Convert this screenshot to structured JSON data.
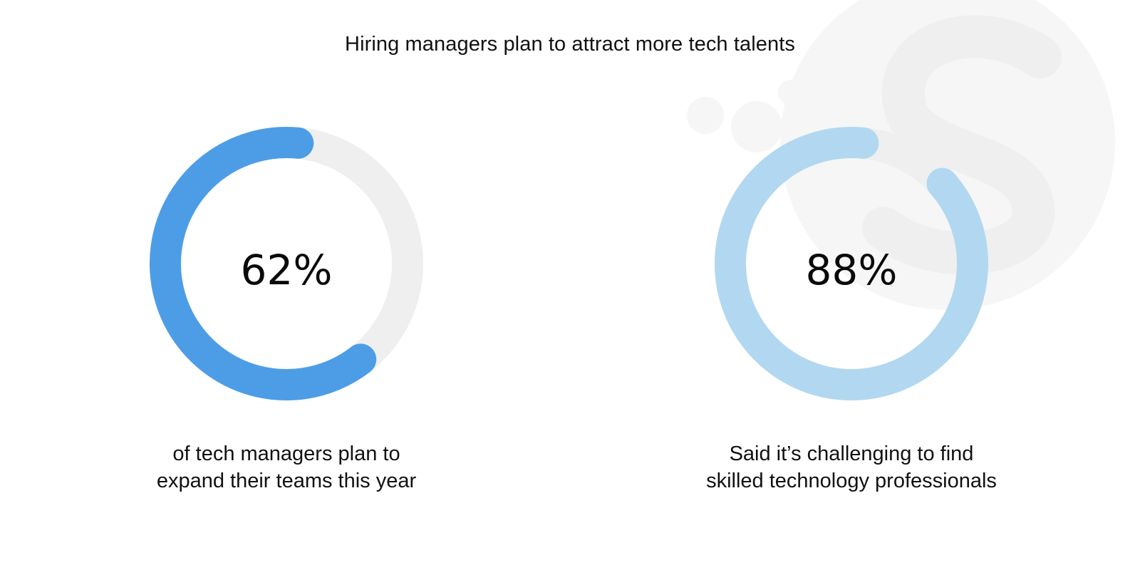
{
  "title": "Hiring managers plan to attract more tech talents",
  "colors": {
    "track": "#efefef",
    "watermark": "#f6f6f6",
    "primary": "#4d9de6",
    "secondary": "#b1d8f0",
    "text": "#111111"
  },
  "chart_data": [
    {
      "type": "pie",
      "variant": "donut",
      "value": 62,
      "max": 100,
      "color": "#4d9de6",
      "label": "62%",
      "caption_lines": [
        "of tech managers plan to",
        "expand their teams this year"
      ]
    },
    {
      "type": "pie",
      "variant": "donut",
      "value": 88,
      "max": 100,
      "color": "#b1d8f0",
      "label": "88%",
      "caption_lines": [
        "Said it’s challenging to find",
        "skilled technology professionals"
      ]
    }
  ]
}
